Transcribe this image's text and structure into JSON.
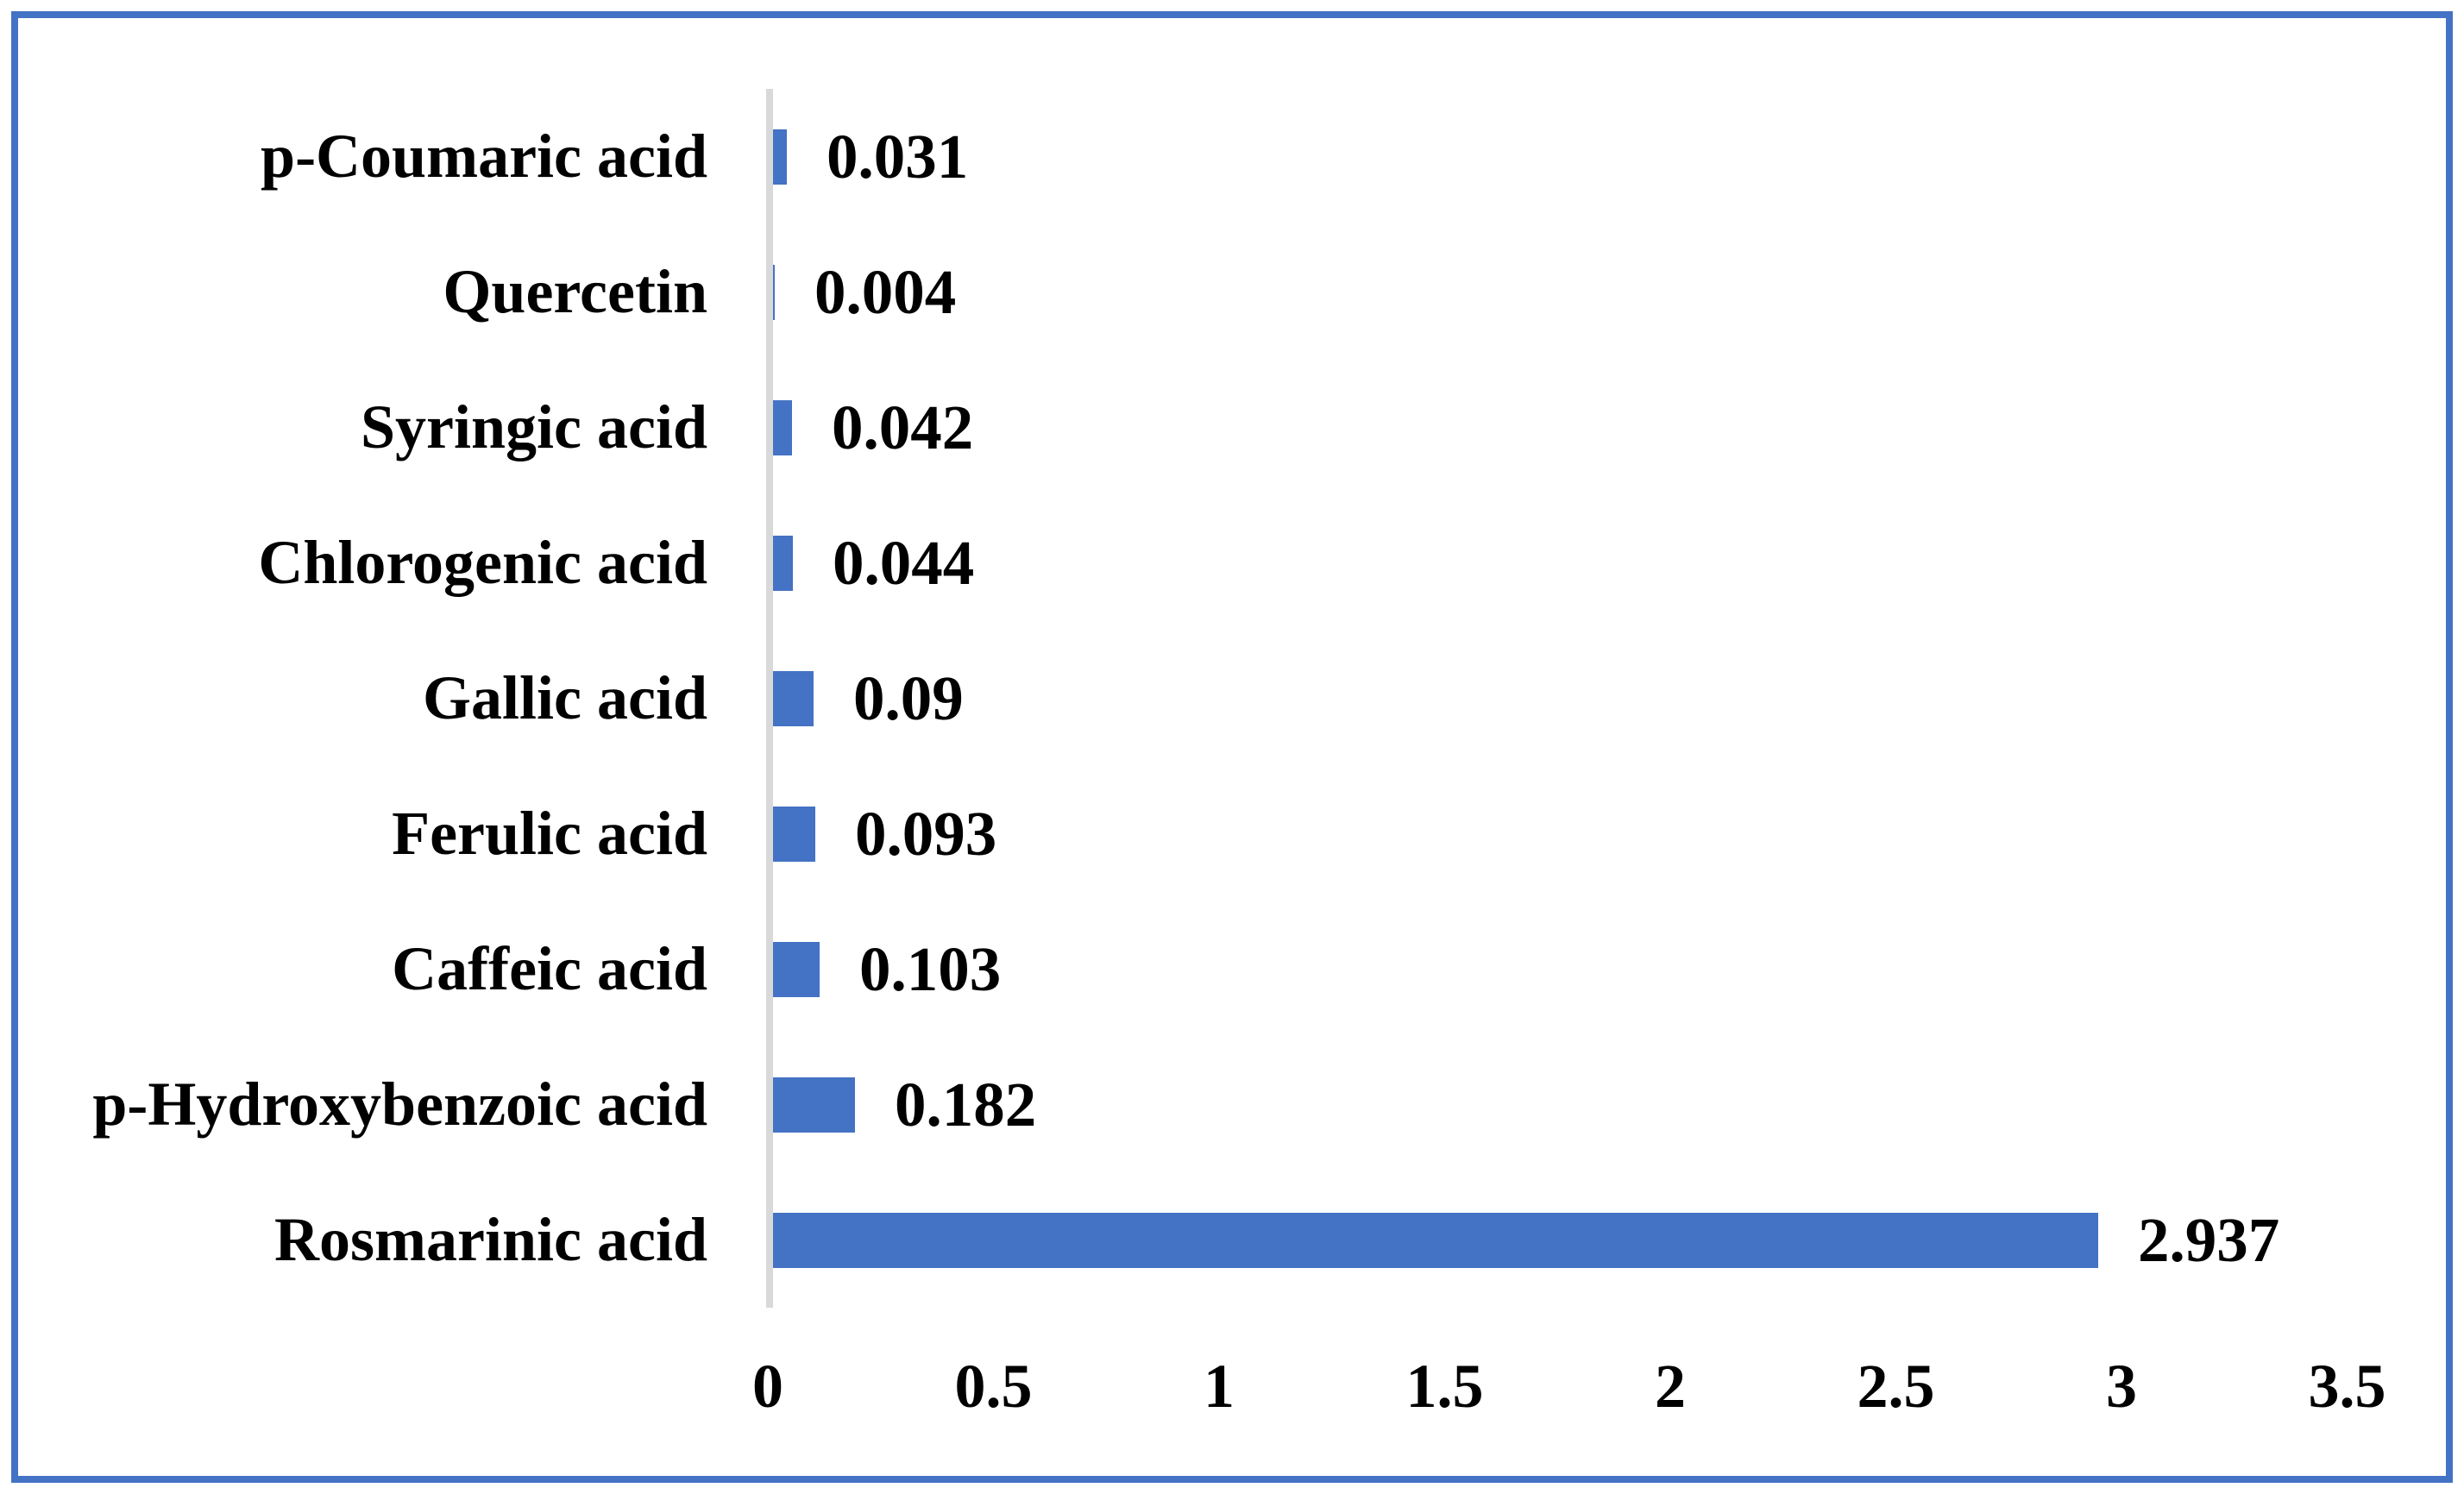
{
  "chart_data": {
    "type": "bar",
    "orientation": "horizontal",
    "title": "",
    "xlabel": "",
    "ylabel": "",
    "categories": [
      "p-Coumaric acid",
      "Quercetin",
      "Syringic acid",
      "Chlorogenic acid",
      "Gallic acid",
      "Ferulic acid",
      "Caffeic acid",
      "p-Hydroxybenzoic acid",
      "Rosmarinic acid"
    ],
    "values": [
      0.031,
      0.004,
      0.042,
      0.044,
      0.09,
      0.093,
      0.103,
      0.182,
      2.937
    ],
    "value_labels": [
      "0.031",
      "0.004",
      "0.042",
      "0.044",
      "0.09",
      "0.093",
      "0.103",
      "0.182",
      "2.937"
    ],
    "x_ticks": [
      0,
      0.5,
      1,
      1.5,
      2,
      2.5,
      3,
      3.5
    ],
    "x_tick_labels": [
      "0",
      "0.5",
      "1",
      "1.5",
      "2",
      "2.5",
      "3",
      "3.5"
    ],
    "xlim": [
      0,
      3.5
    ],
    "grid": false,
    "legend": "none",
    "bar_color": "#4472C4",
    "axis_line_color": "#D9D9D9",
    "border_color": "#4472C4",
    "text_color": "#000000"
  }
}
